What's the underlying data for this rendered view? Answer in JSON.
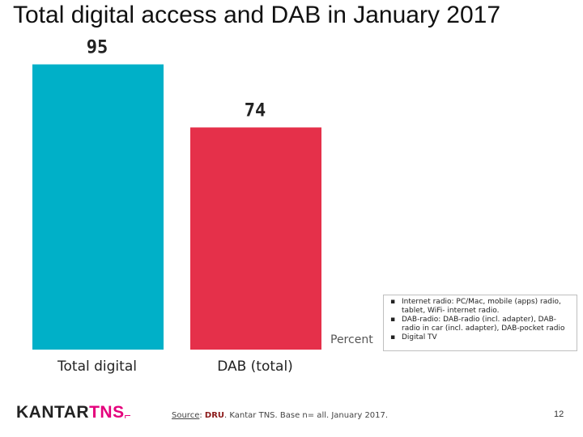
{
  "title": "Total digital access and DAB in January 2017",
  "unit_label": "Percent",
  "notes": [
    "Internet radio: PC/Mac, mobile (apps) radio, tablet, WiFi- internet radio.",
    "DAB-radio: DAB-radio (incl. adapter), DAB-radio in car (incl. adapter), DAB-pocket radio",
    "Digital TV"
  ],
  "footer": {
    "logo_kantar": "KANTAR",
    "logo_tns": "TNS",
    "logo_corner": "⌐",
    "source_label": "Source",
    "source_sep": ": ",
    "source_name": "DRU",
    "source_rest": ". Kantar TNS. Base n= all. January 2017.",
    "page_number": "12"
  },
  "chart_data": {
    "type": "bar",
    "categories": [
      "Total digital",
      "DAB (total)"
    ],
    "values": [
      95,
      74
    ],
    "colors": [
      "#00b0c8",
      "#e5304a"
    ],
    "ylim": [
      0,
      100
    ],
    "show_data_labels": true,
    "grid": false
  }
}
